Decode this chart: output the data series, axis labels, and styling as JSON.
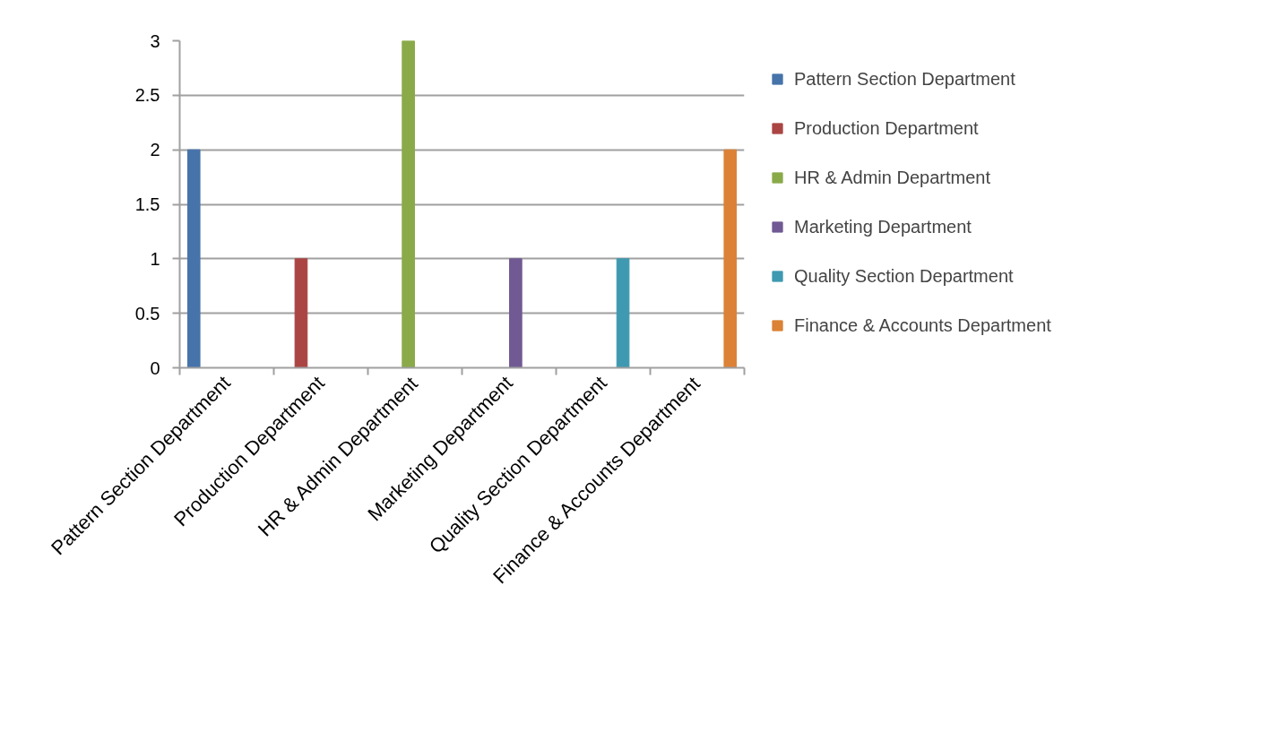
{
  "chart_data": {
    "type": "bar",
    "categories": [
      "Pattern Section Department",
      "Production Department",
      "HR & Admin Department",
      "Marketing Department",
      "Quality Section Department",
      "Finance & Accounts Department"
    ],
    "series": [
      {
        "name": "Pattern Section Department",
        "color": "#4673aa",
        "values": [
          2,
          null,
          null,
          null,
          null,
          null
        ]
      },
      {
        "name": "Production Department",
        "color": "#aa4543",
        "values": [
          null,
          1,
          null,
          null,
          null,
          null
        ]
      },
      {
        "name": "HR & Admin Department",
        "color": "#8aaa4a",
        "values": [
          null,
          null,
          3,
          null,
          null,
          null
        ]
      },
      {
        "name": "Marketing Department",
        "color": "#715a93",
        "values": [
          null,
          null,
          null,
          1,
          null,
          null
        ]
      },
      {
        "name": "Quality Section Department",
        "color": "#3f99b0",
        "values": [
          null,
          null,
          null,
          null,
          1,
          null
        ]
      },
      {
        "name": "Finance & Accounts Department",
        "color": "#db8237",
        "values": [
          null,
          null,
          null,
          null,
          null,
          2
        ]
      }
    ],
    "ylim": [
      0,
      3
    ],
    "yticks": [
      0,
      0.5,
      1,
      1.5,
      2,
      2.5,
      3
    ],
    "grid": "y",
    "legend": "right"
  }
}
